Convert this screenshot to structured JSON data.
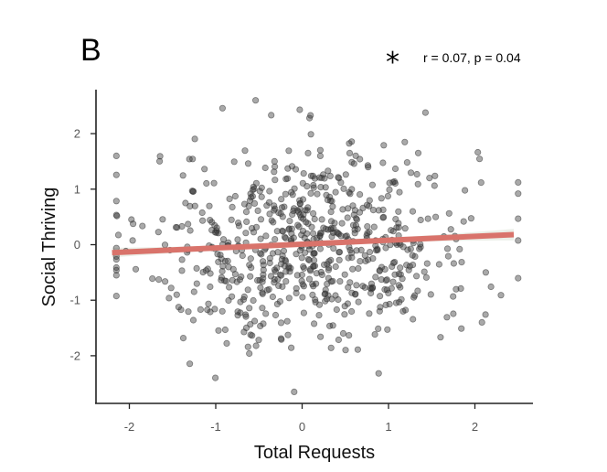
{
  "panel_label": "B",
  "significance_marker": "*",
  "stat_text": "r = 0.07, p = 0.04",
  "colors": {
    "points": "#333333",
    "fit_line": "#d9736b",
    "ci_band": "#e7ece4",
    "axis": "#222222"
  },
  "chart_data": {
    "type": "scatter",
    "title": "",
    "xlabel": "Total Requests",
    "ylabel": "Social Thriving",
    "xlim": [
      -2.4,
      2.7
    ],
    "ylim": [
      -2.9,
      2.8
    ],
    "xticks": [
      -2,
      -1,
      0,
      1,
      2
    ],
    "yticks": [
      -2,
      -1,
      0,
      1,
      2
    ],
    "xtick_labels": [
      "-2",
      "-1",
      "0",
      "1",
      "2"
    ],
    "ytick_labels": [
      "-2",
      "-1",
      "0",
      "1",
      "2"
    ],
    "grid": false,
    "n_points": 700,
    "point_x_mean": 0.1,
    "point_x_sd": 0.95,
    "point_y_mean": 0.0,
    "point_y_sd": 0.9,
    "fit_line": {
      "slope": 0.07,
      "intercept": 0.01,
      "x_range": [
        -2.2,
        2.45
      ]
    },
    "correlation": {
      "r": 0.07,
      "p": 0.04
    }
  }
}
